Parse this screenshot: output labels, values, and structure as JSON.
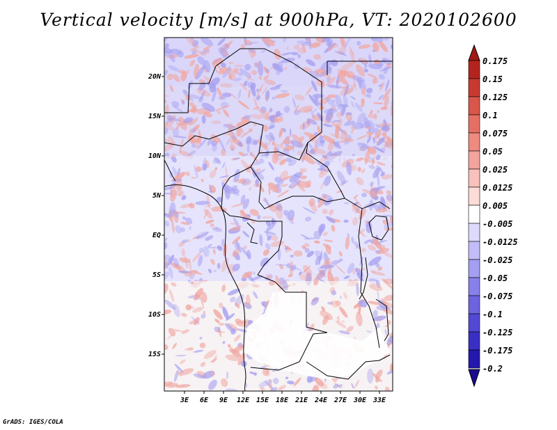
{
  "title": "Vertical velocity [m/s] at 900hPa, VT: 2020102600",
  "footer": "GrADS: IGES/COLA",
  "map": {
    "y_labels": [
      "20N",
      "15N",
      "10N",
      "5N",
      "EQ",
      "5S",
      "10S",
      "15S"
    ],
    "x_labels": [
      "3E",
      "6E",
      "9E",
      "12E",
      "15E",
      "18E",
      "21E",
      "24E",
      "27E",
      "30E",
      "33E"
    ]
  },
  "colorbar": {
    "levels": [
      "0.175",
      "0.15",
      "0.125",
      "0.1",
      "0.075",
      "0.05",
      "0.025",
      "0.0125",
      "0.005",
      "-0.005",
      "-0.0125",
      "-0.025",
      "-0.05",
      "-0.075",
      "-0.1",
      "-0.125",
      "-0.175",
      "-0.2"
    ],
    "colors": {
      "top_arrow": "#a11a14",
      "segments": [
        "#b4241e",
        "#c83a30",
        "#d9564a",
        "#e66f63",
        "#ee8a80",
        "#f3a49c",
        "#f8c1bb",
        "#fcdcd8",
        "#ffffff",
        "#dddafd",
        "#c2bdf8",
        "#a49ff2",
        "#8880ea",
        "#6d63e0",
        "#5248d4",
        "#3a2fc4",
        "#2418ae"
      ],
      "bottom_arrow": "#1a0a90",
      "red_field": "#f0a8a2",
      "blue_field": "#a7a1f0"
    }
  }
}
